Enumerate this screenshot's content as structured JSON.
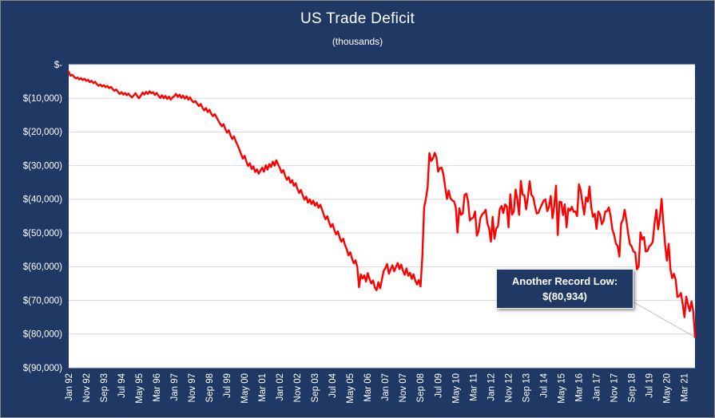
{
  "chart": {
    "title": "US Trade Deficit",
    "subtitle": "(thousands)",
    "background_color": "#1F3864",
    "plot_background": "#FFFFFF",
    "gridline_color": "#D9D9D9",
    "line_color": "#FF0000",
    "annotation": {
      "line1": "Another Record Low:",
      "line2": "$(80,934)"
    }
  },
  "chart_data": {
    "type": "line",
    "title": "US Trade Deficit",
    "subtitle": "(thousands)",
    "x_start": "Jan 1992",
    "x_frequency": "monthly",
    "x_tick_interval": 10,
    "x_tick_labels": [
      "Jan 92",
      "Nov 92",
      "Sep 93",
      "Jul 94",
      "May 95",
      "Mar 96",
      "Jan 97",
      "Nov 97",
      "Sep 98",
      "Jul 99",
      "May 00",
      "Mar 01",
      "Jan 02",
      "Nov 02",
      "Sep 03",
      "Jul 04",
      "May 05",
      "Mar 06",
      "Jan 07",
      "Nov 07",
      "Sep 08",
      "Jul 09",
      "May 10",
      "Mar 11",
      "Jan 12",
      "Nov 12",
      "Sep 13",
      "Jul 14",
      "May 15",
      "Mar 16",
      "Jan 17",
      "Nov 17",
      "Sep 18",
      "Jul 19",
      "May 20",
      "Mar 21"
    ],
    "y_tick_labels": [
      "$-",
      "$(10,000)",
      "$(20,000)",
      "$(30,000)",
      "$(40,000)",
      "$(50,000)",
      "$(60,000)",
      "$(70,000)",
      "$(80,000)",
      "$(90,000)"
    ],
    "ylim": [
      -90000,
      0
    ],
    "grid": "horizontal",
    "legend": "none",
    "annotation": {
      "text": "Another Record Low: $(80,934)",
      "value": -80934,
      "target": "last_point"
    },
    "series": [
      {
        "name": "US Trade Deficit",
        "color": "#FF0000",
        "values": [
          -2100,
          -3300,
          -3000,
          -3600,
          -4100,
          -3800,
          -4400,
          -4000,
          -4600,
          -4200,
          -4800,
          -4500,
          -5200,
          -4800,
          -5500,
          -5100,
          -5800,
          -6300,
          -5900,
          -6500,
          -6100,
          -6700,
          -6300,
          -7000,
          -6600,
          -7300,
          -7800,
          -7400,
          -8100,
          -8700,
          -8200,
          -8900,
          -8400,
          -9100,
          -8600,
          -9300,
          -9700,
          -9100,
          -8500,
          -9400,
          -10000,
          -9200,
          -8300,
          -8900,
          -8100,
          -8700,
          -7900,
          -8500,
          -8200,
          -9000,
          -8400,
          -9200,
          -9900,
          -9100,
          -10000,
          -9300,
          -10200,
          -9500,
          -10400,
          -9700,
          -9400,
          -8700,
          -9600,
          -8900,
          -9900,
          -9200,
          -10100,
          -9400,
          -10400,
          -9700,
          -10700,
          -11200,
          -10800,
          -11600,
          -12300,
          -11700,
          -12800,
          -13600,
          -12900,
          -14100,
          -13400,
          -14600,
          -15300,
          -14700,
          -15600,
          -16600,
          -17500,
          -18300,
          -17700,
          -19100,
          -20200,
          -19500,
          -21000,
          -22100,
          -21300,
          -22800,
          -23900,
          -25200,
          -26600,
          -27900,
          -27100,
          -28800,
          -30100,
          -29300,
          -31000,
          -30200,
          -31900,
          -31100,
          -32400,
          -31500,
          -30600,
          -31800,
          -29900,
          -31200,
          -29500,
          -30400,
          -28800,
          -30000,
          -28400,
          -29600,
          -30700,
          -32100,
          -31300,
          -33000,
          -34200,
          -33400,
          -35100,
          -34300,
          -36000,
          -35200,
          -36900,
          -38100,
          -37200,
          -38800,
          -40100,
          -39200,
          -41000,
          -40000,
          -41400,
          -40400,
          -41900,
          -41000,
          -42500,
          -41600,
          -43000,
          -44600,
          -45900,
          -45000,
          -46800,
          -48200,
          -47300,
          -49100,
          -50400,
          -49500,
          -51300,
          -52600,
          -51700,
          -53500,
          -54800,
          -56600,
          -55700,
          -57500,
          -59000,
          -58100,
          -60000,
          -66100,
          -62300,
          -63500,
          -62600,
          -64400,
          -61900,
          -63700,
          -65000,
          -64100,
          -66200,
          -67000,
          -64600,
          -66400,
          -63900,
          -61300,
          -60400,
          -59200,
          -62100,
          -60800,
          -59600,
          -61400,
          -60100,
          -58900,
          -60700,
          -59400,
          -61200,
          -62400,
          -60500,
          -62700,
          -61800,
          -63600,
          -62300,
          -64100,
          -65300,
          -64000,
          -65900,
          -56800,
          -42500,
          -39800,
          -36400,
          -26300,
          -28600,
          -27900,
          -26200,
          -27500,
          -31800,
          -30700,
          -30600,
          -32700,
          -36400,
          -39900,
          -37400,
          -39700,
          -40300,
          -40600,
          -42300,
          -49900,
          -42600,
          -44600,
          -44200,
          -38700,
          -38300,
          -40500,
          -46300,
          -45700,
          -45400,
          -43600,
          -50800,
          -49400,
          -45600,
          -44500,
          -44000,
          -43100,
          -47100,
          -48700,
          -52600,
          -45200,
          -51700,
          -48700,
          -48000,
          -42900,
          -42000,
          -44100,
          -41500,
          -42100,
          -48300,
          -38500,
          -44500,
          -43600,
          -37100,
          -40100,
          -44600,
          -34500,
          -38600,
          -38800,
          -43000,
          -39300,
          -34600,
          -38700,
          -39300,
          -41900,
          -44200,
          -44000,
          -42600,
          -41500,
          -40400,
          -40000,
          -43500,
          -42200,
          -39000,
          -45600,
          -41900,
          -35900,
          -50600,
          -40700,
          -40800,
          -44700,
          -41500,
          -48300,
          -42700,
          -43400,
          -42200,
          -43700,
          -43600,
          -45000,
          -35500,
          -37400,
          -41100,
          -44500,
          -39400,
          -40700,
          -36200,
          -42400,
          -45200,
          -44300,
          -48800,
          -43600,
          -44500,
          -47400,
          -46400,
          -43600,
          -43500,
          -42400,
          -44900,
          -48900,
          -50500,
          -53100,
          -53900,
          -57000,
          -47200,
          -46100,
          -43100,
          -46300,
          -50100,
          -53300,
          -54000,
          -55500,
          -55700,
          -60800,
          -59900,
          -49800,
          -51900,
          -51200,
          -55500,
          -55300,
          -54000,
          -53500,
          -52600,
          -47200,
          -43100,
          -48900,
          -45300,
          -39900,
          -47200,
          -53500,
          -58200,
          -53200,
          -60700,
          -63400,
          -62100,
          -63900,
          -69000,
          -68700,
          -67800,
          -71200,
          -75000,
          -68900,
          -71200,
          -73200,
          -70300,
          -73200,
          -80934
        ]
      }
    ]
  }
}
